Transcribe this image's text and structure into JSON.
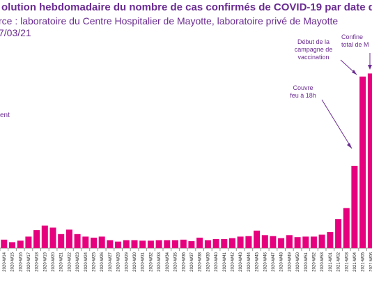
{
  "header": {
    "title": "olution hebdomadaire du nombre de cas confirmés de COVID-19 par date de p",
    "source": "rce : laboratoire du Centre Hospitalier de Mayotte, laboratoire privé de Mayotte",
    "date": "7/03/21"
  },
  "annotations": {
    "left_note": "ent",
    "couvre_feu": "Couvre\nfeu à 18h",
    "vaccination": "Début de la\ncampagne de\nvaccination",
    "confinement": "Confine\ntotal de M"
  },
  "colors": {
    "bar": "#e6007e",
    "text": "#6b2c91",
    "axis": "#000000"
  },
  "chart_data": {
    "type": "bar",
    "title": "",
    "xlabel": "",
    "ylabel": "",
    "categories": [
      "2020-W14",
      "2020-W15",
      "2020-W16",
      "2020-W17",
      "2020-W18",
      "2020-W19",
      "2020-W20",
      "2020-W21",
      "2020-W22",
      "2020-W23",
      "2020-W24",
      "2020-W25",
      "2020-W26",
      "2020-W27",
      "2020-W28",
      "2020-W29",
      "2020-W30",
      "2020-W31",
      "2020-W32",
      "2020-W33",
      "2020-W34",
      "2020-W35",
      "2020-W36",
      "2020-W37",
      "2020-W38",
      "2020-W39",
      "2020-W40",
      "2020-W41",
      "2020-W42",
      "2020-W43",
      "2020-W44",
      "2020-W45",
      "2020-W46",
      "2020-W47",
      "2020-W48",
      "2020-W49",
      "2020-W50",
      "2020-W51",
      "2020-W52",
      "2020-W53",
      "2021-W01",
      "2021-W02",
      "2021-W03",
      "2021-W04",
      "2021-W05",
      "2021-W06"
    ],
    "values": [
      17,
      12,
      15,
      23,
      36,
      45,
      41,
      28,
      37,
      28,
      23,
      21,
      23,
      16,
      13,
      16,
      16,
      15,
      15,
      16,
      16,
      16,
      17,
      14,
      21,
      16,
      18,
      18,
      20,
      23,
      24,
      35,
      26,
      24,
      20,
      26,
      22,
      23,
      23,
      27,
      32,
      58,
      80,
      164,
      342,
      348
    ]
  }
}
